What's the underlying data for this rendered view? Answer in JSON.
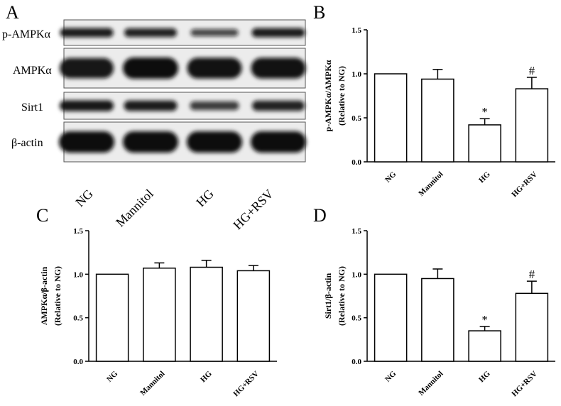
{
  "panel_letters": {
    "a": "A",
    "b": "B",
    "c": "C",
    "d": "D"
  },
  "blot": {
    "rows": [
      {
        "label": "p-AMPKα",
        "intensity": [
          0.85,
          0.8,
          0.45,
          0.85
        ]
      },
      {
        "label": "AMPKα",
        "intensity": [
          0.9,
          1.0,
          0.95,
          0.95
        ]
      },
      {
        "label": "Sirt1",
        "intensity": [
          0.9,
          0.85,
          0.55,
          0.8
        ]
      },
      {
        "label": "β-actin",
        "intensity": [
          1.0,
          1.0,
          1.0,
          1.0
        ]
      }
    ],
    "lanes": [
      "NG",
      "Mannitol",
      "HG",
      "HG+RSV"
    ]
  },
  "chart_data": [
    {
      "panel": "B",
      "type": "bar",
      "categories": [
        "NG",
        "Mannitol",
        "HG",
        "HG+RSV"
      ],
      "values": [
        1.0,
        0.94,
        0.42,
        0.83
      ],
      "errors": [
        0,
        0.11,
        0.07,
        0.13
      ],
      "annotations": [
        "",
        "",
        "*",
        "#"
      ],
      "ylabel_line1": "p-AMPKα/AMPKα",
      "ylabel_line2": "(Relative to NG)",
      "ylim": [
        0,
        1.5
      ],
      "yticks": [
        "0.0",
        "0.5",
        "1.0",
        "1.5"
      ],
      "ytick_values": [
        0,
        0.5,
        1.0,
        1.5
      ]
    },
    {
      "panel": "C",
      "type": "bar",
      "categories": [
        "NG",
        "Mannitol",
        "HG",
        "HG+RSV"
      ],
      "values": [
        1.0,
        1.07,
        1.08,
        1.04
      ],
      "errors": [
        0,
        0.06,
        0.08,
        0.06
      ],
      "annotations": [
        "",
        "",
        "",
        ""
      ],
      "ylabel_line1": "AMPKα/β-actin",
      "ylabel_line2": "(Relative to NG)",
      "ylim": [
        0,
        1.5
      ],
      "yticks": [
        "0.0",
        "0.5",
        "1.0",
        "1.5"
      ],
      "ytick_values": [
        0,
        0.5,
        1.0,
        1.5
      ]
    },
    {
      "panel": "D",
      "type": "bar",
      "categories": [
        "NG",
        "Mannitol",
        "HG",
        "HG+RSV"
      ],
      "values": [
        1.0,
        0.95,
        0.35,
        0.78
      ],
      "errors": [
        0,
        0.11,
        0.05,
        0.14
      ],
      "annotations": [
        "",
        "",
        "*",
        "#"
      ],
      "ylabel_line1": "Sirt1/β-actin",
      "ylabel_line2": "(Relative to NG)",
      "ylim": [
        0,
        1.5
      ],
      "yticks": [
        "0.0",
        "0.5",
        "1.0",
        "1.5"
      ],
      "ytick_values": [
        0,
        0.5,
        1.0,
        1.5
      ]
    }
  ]
}
